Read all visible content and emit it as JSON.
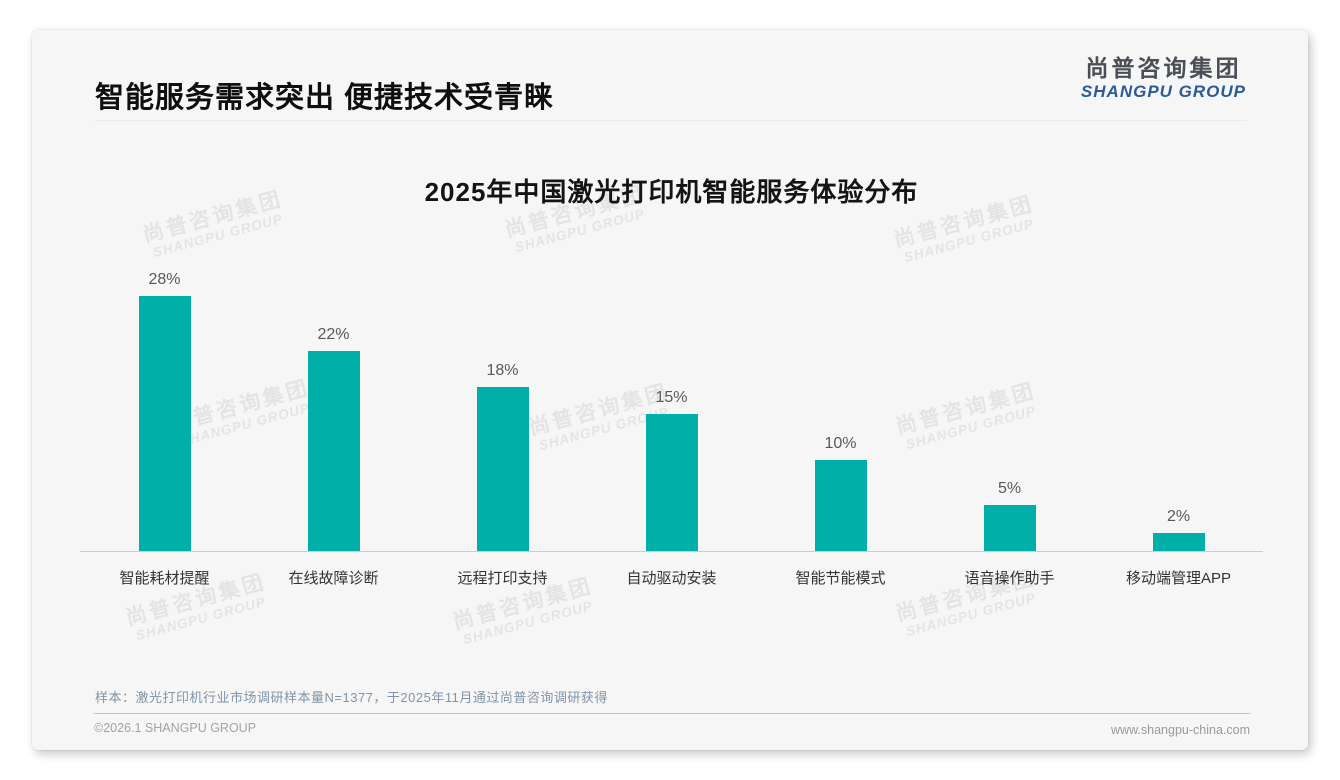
{
  "header": {
    "title": "智能服务需求突出 便捷技术受青睐",
    "logo": {
      "cn": "尚普咨询集团",
      "en": "SHANGPU GROUP"
    }
  },
  "chart_data": {
    "type": "bar",
    "title": "2025年中国激光打印机智能服务体验分布",
    "categories": [
      "智能耗材提醒",
      "在线故障诊断",
      "远程打印支持",
      "自动驱动安装",
      "智能节能模式",
      "语音操作助手",
      "移动端管理APP"
    ],
    "values": [
      28,
      22,
      18,
      15,
      10,
      5,
      2
    ],
    "value_labels": [
      "28%",
      "22%",
      "18%",
      "15%",
      "10%",
      "5%",
      "2%"
    ],
    "unit": "%",
    "ylim": [
      0,
      30
    ],
    "grid": false,
    "legend": false,
    "bar_color": "#00AFA7"
  },
  "note": "样本：激光打印机行业市场调研样本量N=1377，于2025年11月通过尚普咨询调研获得",
  "footer": {
    "left": "©2026.1 SHANGPU GROUP",
    "right": "www.shangpu-china.com"
  },
  "watermark": {
    "cn": "尚普咨询集团",
    "en": "SHANGPU GROUP"
  },
  "colors": {
    "bar": "#00AFA7",
    "logo_blue": "#2b5a96",
    "card_bg": "#f6f6f6",
    "note_text": "#8194a6"
  }
}
